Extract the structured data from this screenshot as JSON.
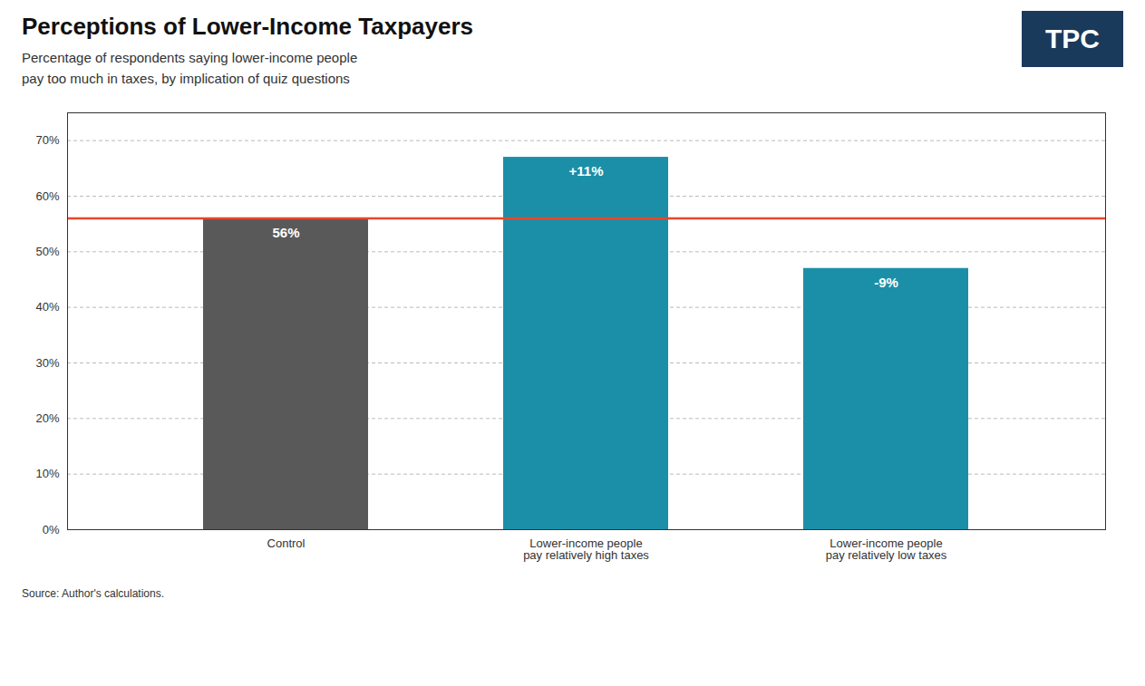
{
  "chart_data": {
    "type": "bar",
    "title": "Perceptions of Lower-Income Taxpayers",
    "subtitle": "Percentage of respondents saying lower-income people\npay too much in taxes, by implication of quiz questions",
    "source": "Source: Author's calculations.",
    "logo": "TPC",
    "categories": [
      "Control",
      "Lower-income people\npay relatively high taxes",
      "Lower-income people\npay relatively low taxes"
    ],
    "values": [
      0.56,
      0.67,
      0.47
    ],
    "colors": [
      "#595959",
      "#1b8fa8",
      "#1b8fa8"
    ],
    "annotations": [
      {
        "x": "Control",
        "text": "56%"
      },
      {
        "x": "Lower-income people\npay relatively high taxes",
        "text": "+11%"
      },
      {
        "x": "Lower-income people\npay relatively low taxes",
        "text": "-9%"
      }
    ],
    "reference_line": {
      "value": 0.56,
      "color": "#e8472a"
    },
    "ylim": [
      0,
      0.75
    ],
    "yticks": [
      {
        "value": 0.0,
        "label": "0%"
      },
      {
        "value": 0.1,
        "label": "10%"
      },
      {
        "value": 0.2,
        "label": "20%"
      },
      {
        "value": 0.3,
        "label": "30%"
      },
      {
        "value": 0.4,
        "label": "40%"
      },
      {
        "value": 0.5,
        "label": "50%"
      },
      {
        "value": 0.6,
        "label": "60%"
      },
      {
        "value": 0.7,
        "label": "70%"
      }
    ],
    "grid": true
  }
}
